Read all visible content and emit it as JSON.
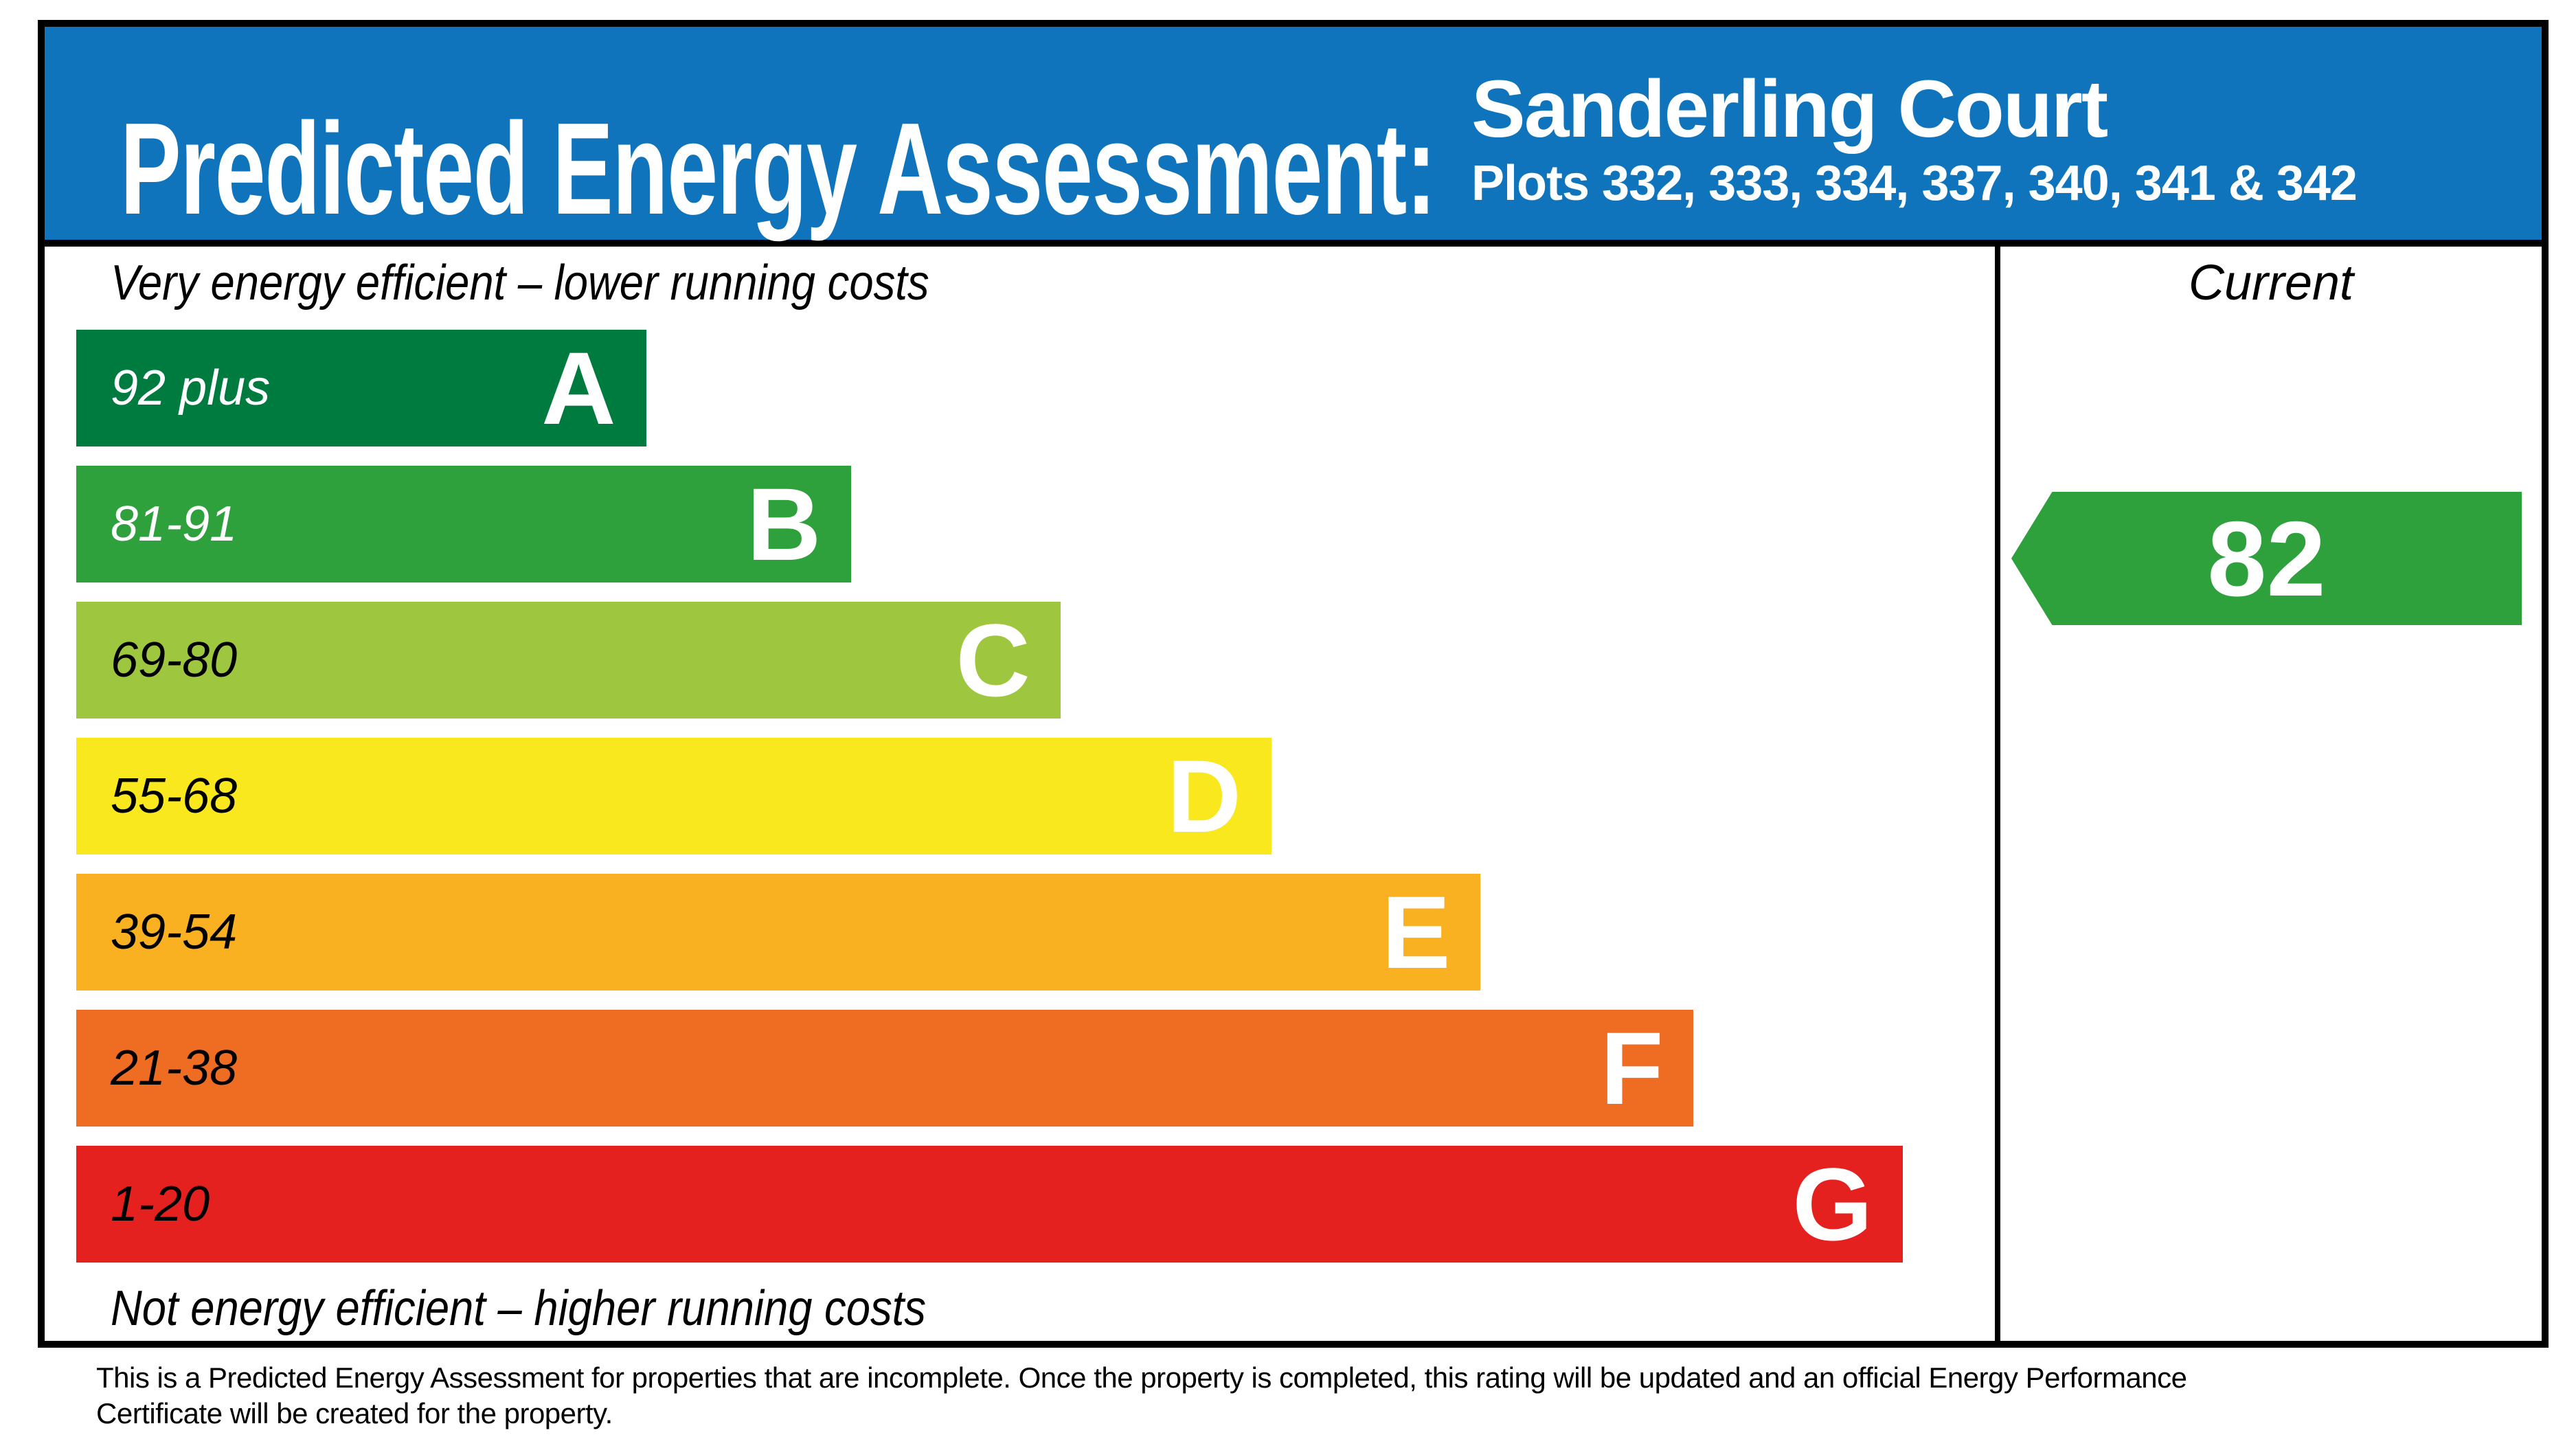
{
  "header": {
    "title": "Predicted Energy Assessment:",
    "property_name": "Sanderling Court",
    "plots": "Plots 332, 333, 334, 337, 340, 341 & 342",
    "background_color": "#0f74bc"
  },
  "chart": {
    "top_caption": "Very energy efficient – lower running costs",
    "bottom_caption": "Not energy efficient – higher running costs",
    "current_column_label": "Current",
    "bands": [
      {
        "letter": "A",
        "range": "92 plus",
        "color": "#007b40",
        "label_color": "#ffffff",
        "width": "29.7%"
      },
      {
        "letter": "B",
        "range": "81-91",
        "color": "#2ea03c",
        "label_color": "#ffffff",
        "width": "40.4%"
      },
      {
        "letter": "C",
        "range": "69-80",
        "color": "#9ec73f",
        "label_color": "#000000",
        "width": "51.3%"
      },
      {
        "letter": "D",
        "range": "55-68",
        "color": "#f9e81e",
        "label_color": "#000000",
        "width": "62.3%"
      },
      {
        "letter": "E",
        "range": "39-54",
        "color": "#f9b021",
        "label_color": "#000000",
        "width": "73.2%"
      },
      {
        "letter": "F",
        "range": "21-38",
        "color": "#ee6d23",
        "label_color": "#000000",
        "width": "84.3%"
      },
      {
        "letter": "G",
        "range": "1-20",
        "color": "#e4211f",
        "label_color": "#000000",
        "width": "95.2%"
      }
    ],
    "current": {
      "value": "82",
      "band": "B",
      "color": "#2ea03c"
    }
  },
  "footer": {
    "line1": "This is a Predicted Energy Assessment for properties that are incomplete. Once the property is completed, this rating will be updated and an official Energy Performance",
    "line2": "Certificate will be created for the property."
  },
  "chart_data": {
    "type": "bar",
    "title": "Predicted Energy Assessment: Sanderling Court — Plots 332, 333, 334, 337, 340, 341 & 342",
    "categories": [
      "A",
      "B",
      "C",
      "D",
      "E",
      "F",
      "G"
    ],
    "band_ranges": [
      "92 plus",
      "81-91",
      "69-80",
      "55-68",
      "39-54",
      "21-38",
      "1-20"
    ],
    "band_colors": [
      "#007b40",
      "#2ea03c",
      "#9ec73f",
      "#f9e81e",
      "#f9b021",
      "#ee6d23",
      "#e4211f"
    ],
    "bar_relative_widths": [
      0.297,
      0.404,
      0.513,
      0.623,
      0.732,
      0.843,
      0.952
    ],
    "annotations": [
      "Very energy efficient – lower running costs",
      "Not energy efficient – higher running costs"
    ],
    "legend_position": "right",
    "current_rating": {
      "value": 82,
      "band": "B",
      "column_label": "Current"
    }
  }
}
